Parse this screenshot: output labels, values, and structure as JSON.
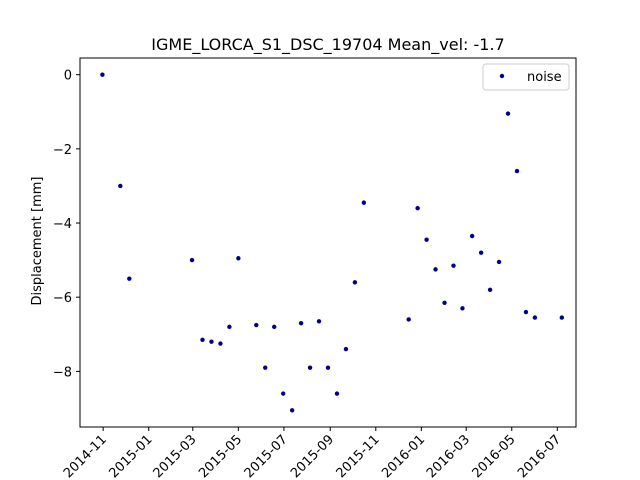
{
  "chart_data": {
    "type": "scatter",
    "title": "IGME_LORCA_S1_DSC_19704     Mean_vel: -1.7",
    "xlabel": "",
    "ylabel": "Displacement [mm]",
    "xlim": [
      "2014-10-01",
      "2016-07-26"
    ],
    "ylim": [
      -9.5,
      0.45
    ],
    "grid": false,
    "legend_position": "top-right",
    "x_ticks": [
      "2014-11",
      "2015-01",
      "2015-03",
      "2015-05",
      "2015-07",
      "2015-09",
      "2015-11",
      "2016-01",
      "2016-03",
      "2016-05",
      "2016-07"
    ],
    "y_ticks": [
      0,
      -2,
      -4,
      -6,
      -8
    ],
    "y_tick_labels": [
      "0",
      "−2",
      "−4",
      "−6",
      "−8"
    ],
    "series": [
      {
        "name": "noise",
        "color": "#00008b",
        "marker": "dot",
        "x": [
          "2014-10-31",
          "2014-11-24",
          "2014-12-06",
          "2015-02-28",
          "2015-03-14",
          "2015-03-26",
          "2015-04-07",
          "2015-04-19",
          "2015-05-01",
          "2015-05-25",
          "2015-06-06",
          "2015-06-18",
          "2015-06-30",
          "2015-07-12",
          "2015-07-24",
          "2015-08-05",
          "2015-08-17",
          "2015-08-29",
          "2015-09-10",
          "2015-09-22",
          "2015-10-04",
          "2015-10-16",
          "2015-12-15",
          "2015-12-27",
          "2016-01-08",
          "2016-01-20",
          "2016-02-01",
          "2016-02-13",
          "2016-02-25",
          "2016-03-09",
          "2016-03-21",
          "2016-04-02",
          "2016-04-14",
          "2016-04-26",
          "2016-05-08",
          "2016-05-20",
          "2016-06-01",
          "2016-07-07"
        ],
        "y": [
          0.0,
          -3.0,
          -5.5,
          -5.0,
          -7.15,
          -7.2,
          -7.25,
          -6.8,
          -4.95,
          -6.75,
          -7.9,
          -6.8,
          -8.6,
          -9.05,
          -6.7,
          -7.9,
          -6.65,
          -7.9,
          -8.6,
          -7.4,
          -5.6,
          -3.45,
          -6.6,
          -3.6,
          -4.45,
          -5.25,
          -6.15,
          -5.15,
          -6.3,
          -4.35,
          -4.8,
          -5.8,
          -5.05,
          -1.05,
          -2.6,
          -6.4,
          -6.55,
          -6.55
        ]
      }
    ]
  }
}
